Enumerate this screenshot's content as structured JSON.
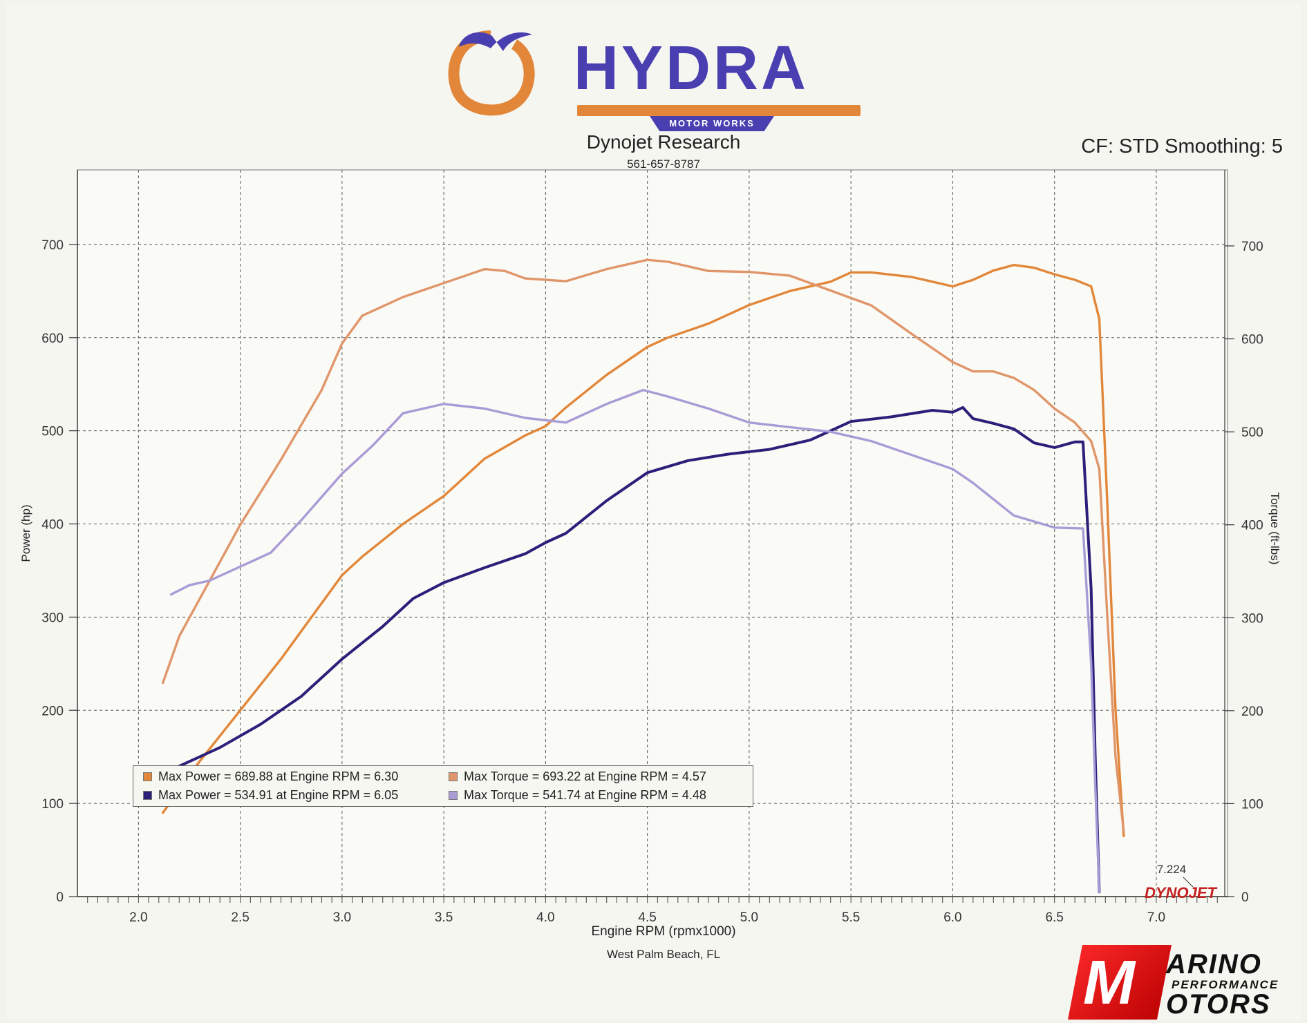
{
  "logo": {
    "word": "HYDRA",
    "subtitle": "MOTOR WORKS"
  },
  "header": {
    "title": "Dynojet Research",
    "phone": "561-657-8787",
    "correction": "CF: STD Smoothing: 5"
  },
  "footer": {
    "location": "West Palm Beach, FL"
  },
  "brand": {
    "top": "ARINO",
    "middle": "PERFORMANCE",
    "bottom": "OTORS",
    "initial": "M"
  },
  "dynojet_mark": "DYNOJET",
  "colors": {
    "orange": "#e2873a",
    "light_orange": "#e0966a",
    "navy": "#2c1f7a",
    "lavender": "#a99bd6"
  },
  "chart_data": {
    "type": "line",
    "xlabel": "Engine RPM (rpmx1000)",
    "ylabel": "Power (hp)",
    "y2label": "Torque (ft-lbs)",
    "xlim": [
      1.7,
      7.35
    ],
    "ylim": [
      0,
      750
    ],
    "y2lim": [
      0,
      700
    ],
    "x_ticks": [
      "2.0",
      "2.5",
      "3.0",
      "3.5",
      "4.0",
      "4.5",
      "5.0",
      "5.5",
      "6.0",
      "6.5",
      "7.0"
    ],
    "y_ticks": [
      "0",
      "100",
      "200",
      "300",
      "400",
      "500",
      "600",
      "700"
    ],
    "y2_ticks": [
      "0",
      "100",
      "200",
      "300",
      "400",
      "500",
      "600",
      "700"
    ],
    "end_marker": "7.224",
    "grid": true,
    "series": [
      {
        "axis": "left",
        "color": "#e2873a",
        "x": [
          2.12,
          2.3,
          2.5,
          2.7,
          2.9,
          3.0,
          3.1,
          3.3,
          3.5,
          3.7,
          3.9,
          4.0,
          4.1,
          4.3,
          4.5,
          4.6,
          4.8,
          5.0,
          5.2,
          5.4,
          5.5,
          5.6,
          5.8,
          5.9,
          6.0,
          6.1,
          6.2,
          6.3,
          6.4,
          6.5,
          6.6,
          6.68,
          6.72,
          6.76,
          6.8,
          6.84
        ],
        "y": [
          90,
          145,
          200,
          255,
          315,
          345,
          365,
          400,
          430,
          470,
          495,
          505,
          525,
          560,
          590,
          600,
          615,
          635,
          650,
          660,
          670,
          670,
          665,
          660,
          655,
          662,
          672,
          678,
          675,
          668,
          662,
          655,
          620,
          420,
          200,
          65
        ]
      },
      {
        "axis": "right",
        "color": "#e0966a",
        "x": [
          2.12,
          2.2,
          2.3,
          2.5,
          2.7,
          2.9,
          3.0,
          3.1,
          3.3,
          3.5,
          3.7,
          3.8,
          3.9,
          4.1,
          4.3,
          4.5,
          4.6,
          4.8,
          5.0,
          5.2,
          5.4,
          5.6,
          5.8,
          6.0,
          6.1,
          6.2,
          6.3,
          6.4,
          6.5,
          6.6,
          6.68,
          6.72,
          6.76,
          6.8,
          6.84
        ],
        "y": [
          230,
          280,
          320,
          400,
          470,
          545,
          595,
          625,
          645,
          660,
          675,
          673,
          665,
          662,
          675,
          685,
          683,
          673,
          672,
          668,
          652,
          636,
          605,
          575,
          565,
          565,
          558,
          545,
          525,
          510,
          490,
          460,
          300,
          150,
          70
        ]
      },
      {
        "axis": "left",
        "color": "#2c1f7a",
        "x": [
          2.12,
          2.2,
          2.4,
          2.6,
          2.8,
          3.0,
          3.2,
          3.35,
          3.5,
          3.7,
          3.9,
          4.0,
          4.1,
          4.3,
          4.5,
          4.7,
          4.9,
          5.1,
          5.3,
          5.5,
          5.7,
          5.9,
          6.0,
          6.05,
          6.1,
          6.2,
          6.3,
          6.4,
          6.5,
          6.6,
          6.64,
          6.68,
          6.7,
          6.72
        ],
        "y": [
          130,
          140,
          160,
          185,
          215,
          255,
          290,
          320,
          337,
          353,
          368,
          380,
          390,
          425,
          455,
          468,
          475,
          480,
          490,
          510,
          515,
          522,
          520,
          525,
          513,
          508,
          502,
          487,
          482,
          488,
          488,
          330,
          150,
          5
        ]
      },
      {
        "axis": "right",
        "color": "#a99bd6",
        "x": [
          2.16,
          2.25,
          2.35,
          2.5,
          2.65,
          2.8,
          3.0,
          3.15,
          3.3,
          3.5,
          3.7,
          3.9,
          4.1,
          4.3,
          4.48,
          4.6,
          4.8,
          5.0,
          5.2,
          5.4,
          5.6,
          5.8,
          6.0,
          6.1,
          6.3,
          6.5,
          6.64,
          6.68,
          6.7,
          6.72
        ],
        "y": [
          325,
          335,
          340,
          355,
          370,
          405,
          455,
          485,
          520,
          530,
          525,
          515,
          510,
          530,
          545,
          538,
          525,
          510,
          505,
          500,
          490,
          475,
          460,
          445,
          410,
          397,
          396,
          250,
          120,
          5
        ]
      }
    ],
    "legend": [
      {
        "label": "Max Power = 689.88 at Engine RPM = 6.30",
        "color": "#e2873a"
      },
      {
        "label": "Max Torque = 693.22 at Engine RPM = 4.57",
        "color": "#e0966a"
      },
      {
        "label": "Max Power = 534.91 at Engine RPM = 6.05",
        "color": "#2c1f7a"
      },
      {
        "label": "Max Torque = 541.74 at Engine RPM = 4.48",
        "color": "#a99bd6"
      }
    ]
  }
}
